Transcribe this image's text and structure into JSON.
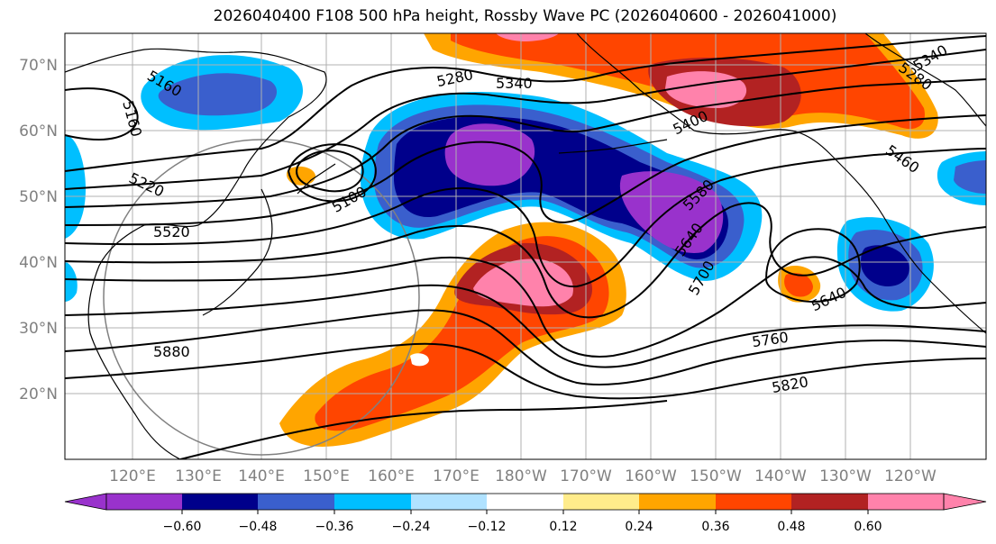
{
  "title": "2026040400 F108 500 hPa height, Rossby Wave PC (2026040600 - 2026041000)",
  "lat_labels": [
    "70°N",
    "60°N",
    "50°N",
    "40°N",
    "30°N",
    "20°N"
  ],
  "lon_labels": [
    "120°E",
    "130°E",
    "140°E",
    "150°E",
    "160°E",
    "170°E",
    "180°W",
    "170°W",
    "160°W",
    "150°W",
    "140°W",
    "130°W",
    "120°W"
  ],
  "colorbar": {
    "colors": [
      "#9932cc",
      "#00008b",
      "#3a5fcd",
      "#00bfff",
      "#b0e2ff",
      "#ffffff",
      "#ffec8b",
      "#ffa500",
      "#ff4500",
      "#b22222",
      "#ff82ab"
    ],
    "tick_labels": [
      "−0.60",
      "−0.48",
      "−0.36",
      "−0.24",
      "−0.12",
      "0.12",
      "0.24",
      "0.36",
      "0.48",
      "0.60"
    ]
  },
  "contour_labels": [
    "5160",
    "5160",
    "5220",
    "5280",
    "5340",
    "5100",
    "5400",
    "5520",
    "5580",
    "5640",
    "5700",
    "5880",
    "5460",
    "5640",
    "5760",
    "5820",
    "5340",
    "5280"
  ]
}
